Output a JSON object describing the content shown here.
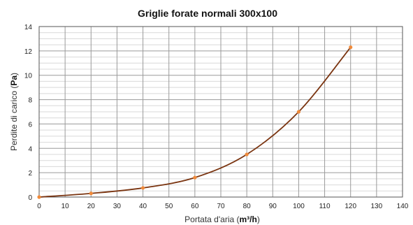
{
  "chart_data": {
    "type": "line",
    "title": "Griglie forate normali 300x100",
    "xlabel": "Portata d'aria",
    "xlabel_unit": "m³/h",
    "ylabel": "Perdite di carico",
    "ylabel_unit": "Pa",
    "xlim": [
      0,
      140
    ],
    "ylim": [
      0,
      14
    ],
    "x_ticks": [
      0,
      10,
      20,
      30,
      40,
      50,
      60,
      70,
      80,
      90,
      100,
      110,
      120,
      130,
      140
    ],
    "y_ticks": [
      0,
      2,
      4,
      6,
      8,
      10,
      12,
      14
    ],
    "grid": true,
    "minor_grid": true,
    "series": [
      {
        "x": [
          0,
          20,
          40,
          60,
          80,
          100,
          120
        ],
        "y": [
          0,
          0.3,
          0.75,
          1.6,
          3.5,
          7.0,
          12.3
        ],
        "line_color": "#7a3410",
        "marker_color": "#f08a3a"
      }
    ]
  }
}
